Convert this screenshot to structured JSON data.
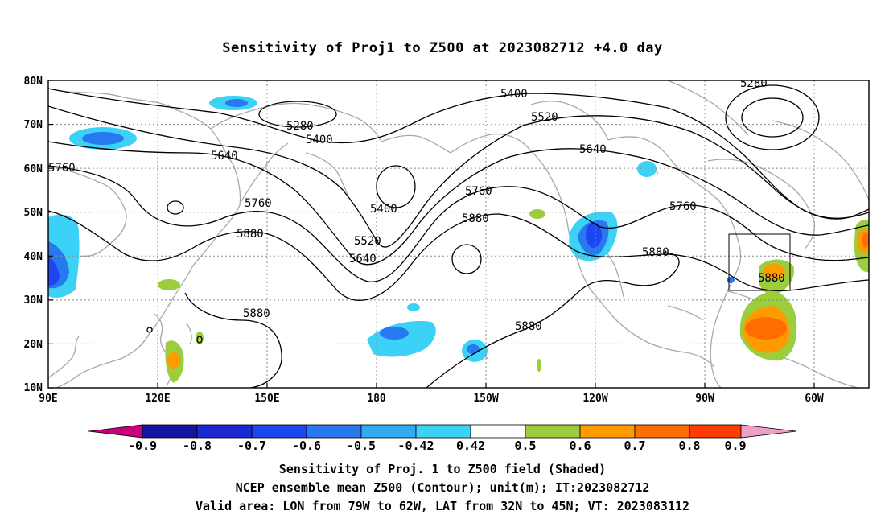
{
  "title": "Sensitivity of Proj1 to Z500 at 2023082712 +4.0 day",
  "lat_labels": [
    "80N",
    "70N",
    "60N",
    "50N",
    "40N",
    "30N",
    "20N",
    "10N"
  ],
  "lon_labels": [
    "90E",
    "120E",
    "150E",
    "180",
    "150W",
    "120W",
    "90W",
    "60W"
  ],
  "contour_labels": [
    "5280",
    "5280",
    "5400",
    "5400",
    "5400",
    "5520",
    "5520",
    "5640",
    "5640",
    "5640",
    "5760",
    "5760",
    "5760",
    "5760",
    "5880",
    "5880",
    "5880",
    "5880",
    "5880",
    "5880"
  ],
  "colorbar": {
    "ticks": [
      "-0.9",
      "-0.8",
      "-0.7",
      "-0.6",
      "-0.5",
      "-0.42",
      "0.42",
      "0.5",
      "0.6",
      "0.7",
      "0.8",
      "0.9"
    ],
    "colors": [
      "#c8007a",
      "#1414a0",
      "#1e28d2",
      "#1e46f0",
      "#2878f0",
      "#32aaf0",
      "#3cd2f8",
      "#ffffff",
      "#9ccd3c",
      "#ff9a00",
      "#ff6e00",
      "#ff3c00",
      "#ff0000",
      "#f0a0c8"
    ]
  },
  "valid_box": {
    "lon_from": "79W",
    "lon_to": "62W",
    "lat_from": "32N",
    "lat_to": "45N"
  },
  "captions": [
    "Sensitivity of Proj. 1 to Z500 field (Shaded)",
    "NCEP ensemble mean Z500 (Contour); unit(m); IT:2023082712",
    "Valid area: LON from 79W to 62W, LAT from 32N to 45N; VT: 2023083112"
  ]
}
